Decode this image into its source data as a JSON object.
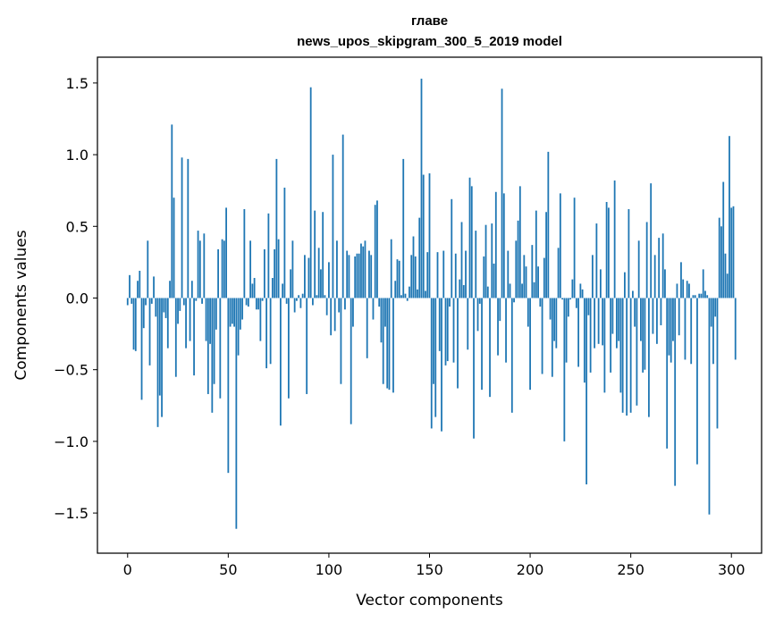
{
  "chart_data": {
    "type": "bar",
    "title_line1": "главе",
    "title_line2": "news_upos_skipgram_300_5_2019 model",
    "xlabel": "Vector components",
    "ylabel": "Components values",
    "xlim": [
      -15,
      315
    ],
    "ylim": [
      -1.78,
      1.68
    ],
    "x_ticks": [
      0,
      50,
      100,
      150,
      200,
      250,
      300
    ],
    "x_tick_labels": [
      "0",
      "50",
      "100",
      "150",
      "200",
      "250",
      "300"
    ],
    "y_ticks": [
      -1.5,
      -1.0,
      -0.5,
      0.0,
      0.5,
      1.0,
      1.5
    ],
    "y_tick_labels": [
      "−1.5",
      "−1.0",
      "−0.5",
      "0.0",
      "0.5",
      "1.0",
      "1.5"
    ],
    "bar_color": "#1f77b4",
    "series": [
      {
        "name": "главе",
        "values": [
          -0.05,
          0.16,
          -0.04,
          -0.36,
          -0.37,
          0.12,
          0.19,
          -0.71,
          -0.21,
          -0.05,
          0.4,
          -0.47,
          -0.04,
          0.15,
          -0.13,
          -0.9,
          -0.68,
          -0.83,
          -0.1,
          -0.14,
          -0.35,
          0.12,
          1.21,
          0.7,
          -0.55,
          -0.18,
          -0.09,
          0.98,
          -0.05,
          -0.35,
          0.97,
          -0.3,
          0.12,
          -0.54,
          -0.02,
          0.47,
          0.4,
          -0.04,
          0.45,
          -0.3,
          -0.67,
          -0.32,
          -0.8,
          -0.6,
          -0.22,
          0.34,
          -0.7,
          0.41,
          0.4,
          0.63,
          -1.22,
          -0.2,
          -0.18,
          -0.2,
          -1.61,
          -0.4,
          -0.22,
          -0.15,
          0.62,
          -0.05,
          -0.06,
          0.4,
          0.1,
          0.14,
          -0.08,
          -0.08,
          -0.3,
          -0.02,
          0.34,
          -0.49,
          0.59,
          -0.46,
          0.14,
          0.34,
          0.97,
          0.41,
          -0.89,
          0.1,
          0.77,
          -0.04,
          -0.7,
          0.2,
          0.4,
          -0.1,
          -0.02,
          0.02,
          -0.07,
          0.03,
          0.3,
          -0.67,
          0.28,
          1.47,
          -0.05,
          0.61,
          0.02,
          0.35,
          0.2,
          0.6,
          0.02,
          -0.12,
          0.25,
          -0.26,
          1.0,
          -0.23,
          0.4,
          -0.1,
          -0.6,
          1.14,
          -0.08,
          0.33,
          0.3,
          -0.88,
          -0.2,
          0.29,
          0.31,
          0.31,
          0.38,
          0.36,
          0.4,
          -0.42,
          0.33,
          0.3,
          -0.15,
          0.65,
          0.68,
          -0.06,
          -0.31,
          -0.6,
          -0.2,
          -0.63,
          -0.64,
          0.41,
          -0.66,
          0.12,
          0.27,
          0.26,
          0.02,
          0.97,
          0.03,
          -0.02,
          0.08,
          0.3,
          0.43,
          0.29,
          0.06,
          0.56,
          1.53,
          0.86,
          0.05,
          0.32,
          0.87,
          -0.91,
          -0.6,
          -0.83,
          0.32,
          -0.37,
          -0.93,
          0.33,
          -0.47,
          -0.44,
          -0.06,
          0.69,
          -0.45,
          0.31,
          -0.63,
          0.13,
          0.53,
          0.09,
          0.33,
          -0.36,
          0.84,
          0.78,
          -0.98,
          0.47,
          -0.23,
          -0.04,
          -0.64,
          0.29,
          0.51,
          0.08,
          -0.69,
          0.52,
          0.24,
          0.74,
          -0.4,
          -0.16,
          1.46,
          0.73,
          -0.45,
          0.33,
          0.1,
          -0.8,
          -0.03,
          0.4,
          0.54,
          0.78,
          0.1,
          0.3,
          0.22,
          -0.2,
          -0.64,
          0.37,
          0.11,
          0.61,
          0.22,
          -0.06,
          -0.53,
          0.28,
          0.6,
          1.02,
          -0.15,
          -0.55,
          -0.3,
          -0.35,
          0.35,
          0.73,
          -0.01,
          -1.0,
          -0.45,
          -0.13,
          -0.01,
          0.13,
          0.7,
          -0.07,
          -0.48,
          0.1,
          0.06,
          -0.59,
          -1.3,
          -0.12,
          -0.52,
          0.3,
          -0.35,
          0.52,
          -0.32,
          0.2,
          -0.33,
          -0.66,
          0.67,
          0.63,
          -0.52,
          -0.25,
          0.82,
          -0.35,
          -0.3,
          -0.66,
          -0.8,
          0.18,
          -0.82,
          0.62,
          -0.8,
          0.05,
          -0.2,
          -0.75,
          0.4,
          -0.3,
          -0.52,
          -0.5,
          0.53,
          -0.83,
          0.8,
          -0.25,
          0.3,
          -0.32,
          0.42,
          -0.19,
          0.45,
          0.2,
          -1.05,
          -0.4,
          -0.45,
          -0.3,
          -1.31,
          0.1,
          -0.26,
          0.25,
          0.13,
          -0.43,
          0.12,
          0.1,
          -0.46,
          0.02,
          0.02,
          -1.16,
          0.03,
          0.03,
          0.2,
          0.05,
          0.02,
          -1.51,
          -0.2,
          -0.46,
          -0.13,
          -0.91,
          0.56,
          0.5,
          0.81,
          0.31,
          0.17,
          1.13,
          0.63,
          0.64,
          -0.43
        ]
      }
    ]
  }
}
